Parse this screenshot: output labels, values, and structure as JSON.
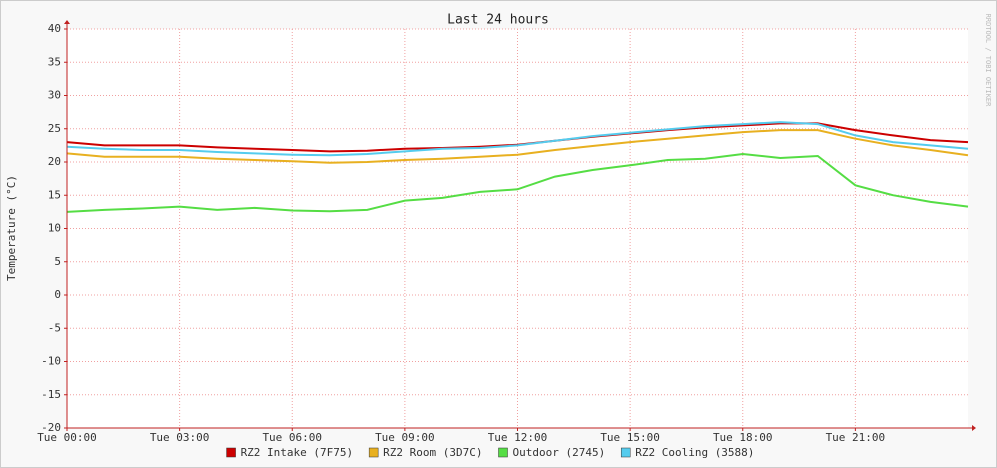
{
  "chart_data": {
    "type": "line",
    "title": "Last 24 hours",
    "y_label": "Temperature (°C)",
    "side_text": "RRDTOOL / TOBI OETIKER",
    "x": [
      0,
      1,
      2,
      3,
      4,
      5,
      6,
      7,
      8,
      9,
      10,
      11,
      12,
      13,
      14,
      15,
      16,
      17,
      18,
      19,
      20,
      21,
      22,
      23,
      24
    ],
    "xlim": [
      0,
      24
    ],
    "xticks": [
      {
        "value": 0,
        "label": "Tue 00:00"
      },
      {
        "value": 3,
        "label": "Tue 03:00"
      },
      {
        "value": 6,
        "label": "Tue 06:00"
      },
      {
        "value": 9,
        "label": "Tue 09:00"
      },
      {
        "value": 12,
        "label": "Tue 12:00"
      },
      {
        "value": 15,
        "label": "Tue 15:00"
      },
      {
        "value": 18,
        "label": "Tue 18:00"
      },
      {
        "value": 21,
        "label": "Tue 21:00"
      }
    ],
    "ylim": [
      -20,
      40
    ],
    "yticks": [
      -20,
      -15,
      -10,
      -5,
      0,
      5,
      10,
      15,
      20,
      25,
      30,
      35,
      40
    ],
    "grid": true,
    "legend": "bottom",
    "series": [
      {
        "name": "RZ2 Intake (7F75)",
        "color": "#cc0000",
        "values": [
          23,
          22.5,
          22.5,
          22.5,
          22.2,
          22,
          21.8,
          21.6,
          21.7,
          22,
          22.1,
          22.3,
          22.6,
          23.2,
          23.8,
          24.3,
          24.8,
          25.2,
          25.5,
          25.8,
          25.8,
          24.8,
          24,
          23.3,
          23
        ]
      },
      {
        "name": "RZ2 Room (3D7C)",
        "color": "#e8b020",
        "values": [
          21.3,
          20.8,
          20.8,
          20.8,
          20.5,
          20.3,
          20.1,
          19.9,
          20,
          20.3,
          20.5,
          20.8,
          21.1,
          21.8,
          22.4,
          23,
          23.5,
          24,
          24.5,
          24.8,
          24.8,
          23.5,
          22.5,
          21.8,
          21
        ]
      },
      {
        "name": "Outdoor (2745)",
        "color": "#55dd44",
        "values": [
          12.5,
          12.8,
          13,
          13.3,
          12.8,
          13.1,
          12.7,
          12.6,
          12.8,
          14.2,
          14.6,
          15.5,
          15.9,
          17.8,
          18.8,
          19.5,
          20.3,
          20.5,
          21.2,
          20.6,
          20.9,
          16.5,
          15,
          14,
          13.3
        ]
      },
      {
        "name": "RZ2 Cooling (3588)",
        "color": "#55ccee",
        "values": [
          22.3,
          22,
          21.8,
          21.8,
          21.5,
          21.3,
          21.1,
          21,
          21.2,
          21.6,
          22,
          22.1,
          22.5,
          23.2,
          23.9,
          24.4,
          24.9,
          25.4,
          25.7,
          26,
          25.7,
          24,
          23,
          22.5,
          22
        ]
      }
    ]
  }
}
